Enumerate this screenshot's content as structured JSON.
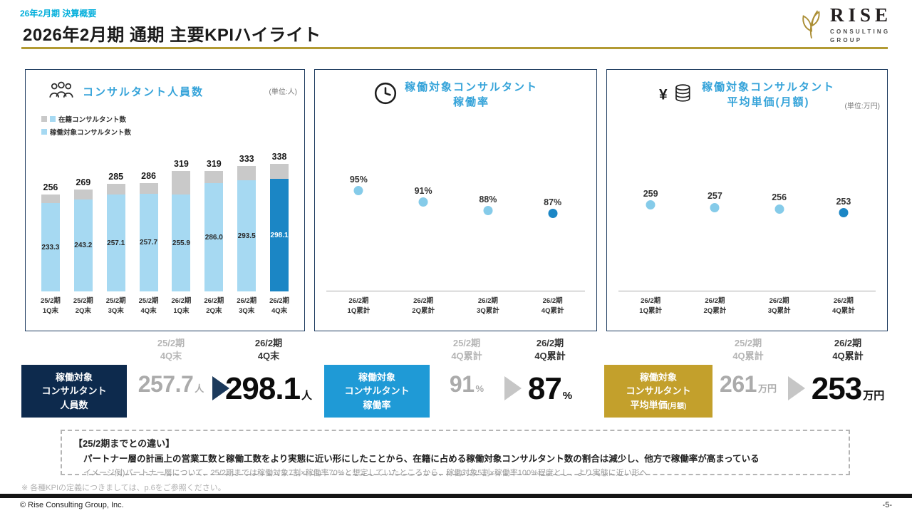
{
  "colors": {
    "accent_blue": "#35a3d9",
    "eyebrow_cyan": "#00aedb",
    "bar_light_blue": "#a6d9f2",
    "bar_gray": "#c9c9c9",
    "highlight_blue": "#1b86c5",
    "dot_blue": "#85cbe9",
    "navy_box": "#0d2a4d",
    "mid_blue_box": "#1f9ad6",
    "gold_box": "#c3a02c",
    "gold_line": "#b29a33"
  },
  "header": {
    "eyebrow": "26年2月期 決算概要",
    "title": "2026年2月期 通期 主要KPIハイライト"
  },
  "logo": {
    "name": "RISE",
    "sub1": "CONSULTING",
    "sub2": "GROUP"
  },
  "panels": [
    {
      "title": "コンサルタント人員数",
      "unit": "(単位:人)",
      "legend": [
        {
          "label": "在籍コンサルタント数"
        },
        {
          "label": "稼働対象コンサルタント数"
        }
      ]
    },
    {
      "title": "稼働対象コンサルタント\n稼働率"
    },
    {
      "title": "稼働対象コンサルタント\n平均単価(月額)",
      "unit": "(単位:万円)"
    }
  ],
  "chart_data": [
    {
      "type": "bar",
      "title": "コンサルタント人員数",
      "ylabel": "人数(人)",
      "categories": [
        "25/2期\n1Q末",
        "25/2期\n2Q末",
        "25/2期\n3Q末",
        "25/2期\n4Q末",
        "26/2期\n1Q末",
        "26/2期\n2Q末",
        "26/2期\n3Q末",
        "26/2期\n4Q末"
      ],
      "series": [
        {
          "name": "在籍コンサルタント数",
          "values": [
            256,
            269,
            285,
            286,
            319,
            319,
            333,
            338
          ],
          "labels": [
            "256",
            "269",
            "285",
            "286",
            "319",
            "319",
            "333",
            "338"
          ]
        },
        {
          "name": "稼働対象コンサルタント数",
          "values": [
            233.3,
            243.2,
            257.1,
            257.7,
            255.9,
            286.0,
            293.5,
            298.1
          ],
          "labels": [
            "233.3",
            "243.2",
            "257.1",
            "257.7",
            "255.9",
            "286.0",
            "293.5",
            "298.1"
          ]
        }
      ],
      "ylim": [
        0,
        360
      ],
      "highlight_index": 7
    },
    {
      "type": "scatter",
      "title": "稼働対象コンサルタント稼働率",
      "categories": [
        "26/2期\n1Q累計",
        "26/2期\n2Q累計",
        "26/2期\n3Q累計",
        "26/2期\n4Q累計"
      ],
      "values": [
        95,
        91,
        88,
        87
      ],
      "labels": [
        "95%",
        "91%",
        "88%",
        "87%"
      ],
      "ylim": [
        60,
        100
      ],
      "highlight_index": 3
    },
    {
      "type": "scatter",
      "title": "稼働対象コンサルタント平均単価(月額)",
      "categories": [
        "26/2期\n1Q累計",
        "26/2期\n2Q累計",
        "26/2期\n3Q累計",
        "26/2期\n4Q累計"
      ],
      "values": [
        259,
        257,
        256,
        253
      ],
      "labels": [
        "259",
        "257",
        "256",
        "253"
      ],
      "ylim": [
        195,
        280
      ],
      "highlight_index": 3
    }
  ],
  "summary": [
    {
      "box_label": "稼働対象\nコンサルタント\n人員数",
      "box_label_small": "",
      "prev_period": "25/2期\n4Q末",
      "prev_value": "257.7",
      "prev_unit": "人",
      "curr_period": "26/2期\n4Q末",
      "curr_value": "298.1",
      "curr_unit": "人"
    },
    {
      "box_label": "稼働対象\nコンサルタント\n稼働率",
      "box_label_small": "",
      "prev_period": "25/2期\n4Q累計",
      "prev_value": "91",
      "prev_unit": "%",
      "curr_period": "26/2期\n4Q累計",
      "curr_value": "87",
      "curr_unit": "%"
    },
    {
      "box_label": "稼働対象\nコンサルタント\n平均単価",
      "box_label_small": "(月額)",
      "prev_period": "25/2期\n4Q累計",
      "prev_value": "261",
      "prev_unit": "万円",
      "curr_period": "26/2期\n4Q累計",
      "curr_value": "253",
      "curr_unit": "万円"
    }
  ],
  "notes": {
    "heading": "【25/2期までとの違い】",
    "line1": "パートナー層の計画上の営業工数と稼働工数をより実態に近い形にしたことから、在籍に占める稼働対象コンサルタント数の割合は減少し、他方で稼働率が高まっている",
    "line2": "イメージ例)パートナー層について、25/2期までは稼働対象7割×稼働率70%と想定していたところから、稼働対象5割×稼働率100%程度とし、より実態に近い形へ"
  },
  "footnote": "※ 各種KPIの定義につきましては、p.6をご参照ください。",
  "footer": {
    "copyright": "© Rise Consulting Group, Inc.",
    "page": "-5-"
  }
}
